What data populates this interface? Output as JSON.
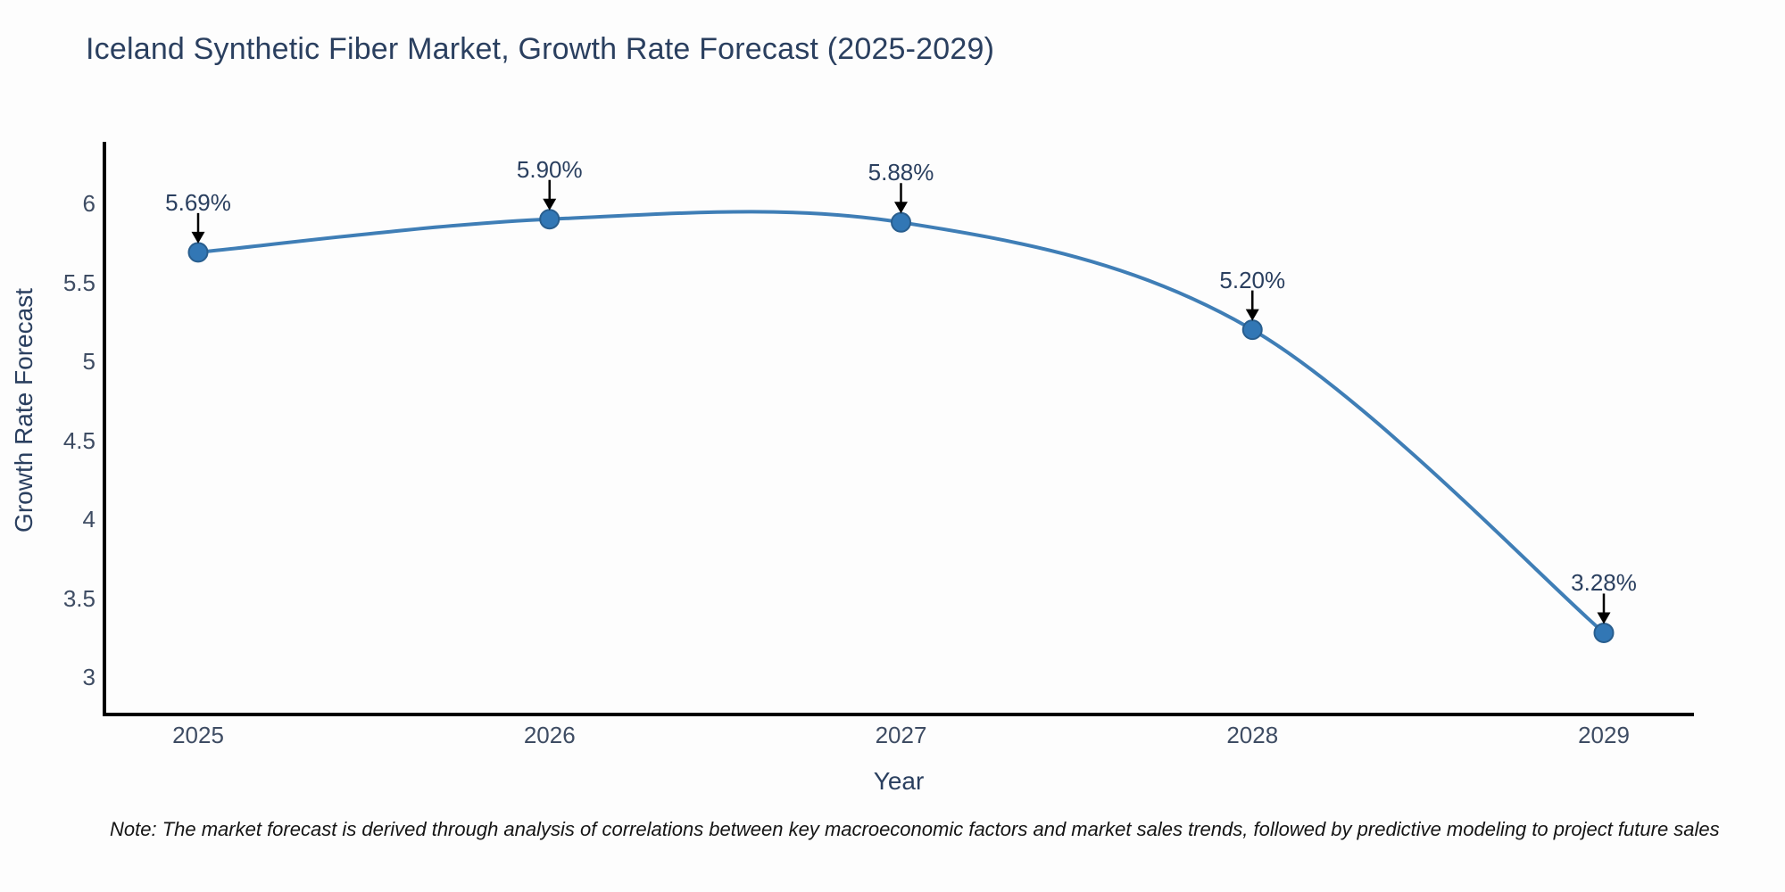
{
  "chart": {
    "note": "Note: The market forecast is derived through analysis of correlations between key macroeconomic factors and market sales trends, followed by predictive modeling to project future sales"
  },
  "chart_data": {
    "type": "line",
    "line_shape": "spline",
    "title": "Iceland Synthetic Fiber Market, Growth Rate Forecast (2025-2029)",
    "xlabel": "Year",
    "ylabel": "Growth Rate Forecast",
    "x": [
      2025,
      2026,
      2027,
      2028,
      2029
    ],
    "y": [
      5.69,
      5.9,
      5.88,
      5.2,
      3.28
    ],
    "point_labels": [
      "5.69%",
      "5.90%",
      "5.88%",
      "5.20%",
      "3.28%"
    ],
    "xtick_labels": [
      "2025",
      "2026",
      "2027",
      "2028",
      "2029"
    ],
    "ytick_labels": [
      "6",
      "5.5",
      "5",
      "4.5",
      "4",
      "3.5",
      "3"
    ],
    "ytick_values": [
      6,
      5.5,
      5,
      4.5,
      4,
      3.5,
      3
    ],
    "ylim": [
      2.76,
      6.39
    ],
    "grid": false,
    "legend_position": "none",
    "colors": {
      "line": "#3f7eb6",
      "marker_fill": "#3277b5",
      "marker_edge": "#295e8e",
      "arrow": "#000000",
      "axis": "#000000",
      "title_text": "#2a3f5f",
      "tick_text": "#3e4c63"
    }
  }
}
